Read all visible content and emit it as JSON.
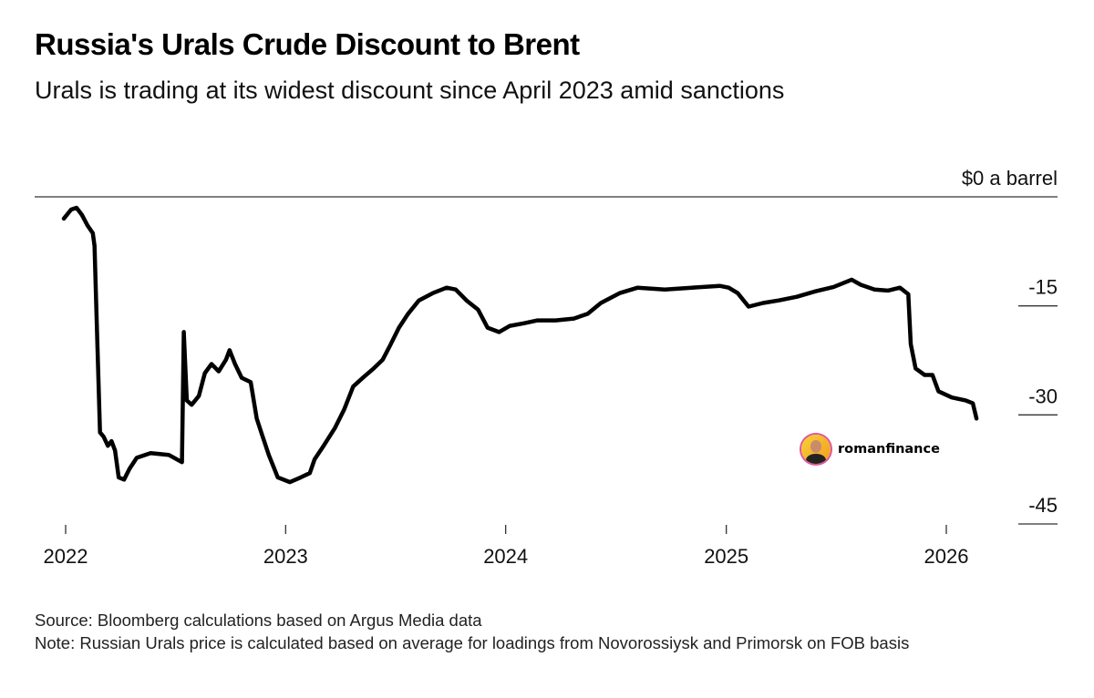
{
  "chart_data": {
    "type": "line",
    "title": "Russia's Urals Crude Discount to Brent",
    "subtitle": "Urals is trading at its widest discount since April 2023 amid sanctions",
    "ylabel": "$0 a barrel",
    "ylim": [
      -45,
      0
    ],
    "y_ticks": [
      "$0 a barrel",
      "-15",
      "-30",
      "-45"
    ],
    "y_tick_values": [
      0,
      -15,
      -30,
      -45
    ],
    "x_ticks": [
      "2022",
      "2023",
      "2024",
      "2025",
      "2026"
    ],
    "grid": false,
    "line_color": "#000000",
    "series": [
      {
        "x": [
          "2021-12-29",
          "2022-01-10",
          "2022-01-19",
          "2022-01-28",
          "2022-02-06",
          "2022-02-15",
          "2022-02-18",
          "2022-02-21",
          "2022-02-27",
          "2022-03-05",
          "2022-03-12",
          "2022-03-18",
          "2022-03-24",
          "2022-03-30",
          "2022-04-08",
          "2022-04-17",
          "2022-04-29",
          "2022-05-22",
          "2022-06-21",
          "2022-07-13",
          "2022-07-16",
          "2022-07-21",
          "2022-07-29",
          "2022-08-10",
          "2022-08-20",
          "2022-08-31",
          "2022-09-12",
          "2022-09-24",
          "2022-09-30",
          "2022-10-09",
          "2022-10-20",
          "2022-11-04",
          "2022-11-14",
          "2022-11-23",
          "2022-12-04",
          "2022-12-19",
          "2023-01-08",
          "2023-01-26",
          "2023-02-10",
          "2023-02-18",
          "2023-03-05",
          "2023-03-24",
          "2023-04-08",
          "2023-04-23",
          "2023-05-09",
          "2023-05-27",
          "2023-06-11",
          "2023-06-23",
          "2023-07-08",
          "2023-07-23",
          "2023-08-10",
          "2023-09-02",
          "2023-09-25",
          "2023-10-10",
          "2023-10-28",
          "2023-11-16",
          "2023-12-02",
          "2023-12-21",
          "2024-01-08",
          "2024-01-31",
          "2024-02-23",
          "2024-03-24",
          "2024-04-23",
          "2024-05-16",
          "2024-06-07",
          "2024-07-08",
          "2024-08-07",
          "2024-09-21",
          "2024-11-05",
          "2024-12-21",
          "2025-01-05",
          "2025-01-20",
          "2025-02-07",
          "2025-03-03",
          "2025-03-29",
          "2025-04-28",
          "2025-05-29",
          "2025-06-28",
          "2025-07-28",
          "2025-08-12",
          "2025-09-04",
          "2025-09-26",
          "2025-10-16",
          "2025-10-30",
          "2025-11-03",
          "2025-11-11",
          "2025-11-26",
          "2025-12-09",
          "2025-12-19",
          "2026-01-10",
          "2026-02-02",
          "2026-02-14",
          "2026-02-20"
        ],
        "y": [
          -3.0,
          -1.75,
          -1.5,
          -2.5,
          -3.9,
          -5.0,
          -6.75,
          -15.5,
          -32.4,
          -33.0,
          -34.25,
          -33.6,
          -34.9,
          -38.6,
          -38.9,
          -37.4,
          -35.9,
          -35.25,
          -35.5,
          -36.5,
          -18.6,
          -28.0,
          -28.6,
          -27.4,
          -24.25,
          -23.0,
          -24.0,
          -22.4,
          -21.1,
          -23.0,
          -24.9,
          -25.5,
          -30.5,
          -32.75,
          -35.5,
          -38.6,
          -39.25,
          -38.6,
          -38.0,
          -36.1,
          -34.25,
          -31.75,
          -29.25,
          -26.1,
          -24.9,
          -23.6,
          -22.4,
          -20.5,
          -18.0,
          -16.1,
          -14.25,
          -13.25,
          -12.5,
          -12.75,
          -14.25,
          -15.5,
          -18.0,
          -18.6,
          -17.75,
          -17.4,
          -17.0,
          -17.0,
          -16.75,
          -16.1,
          -14.6,
          -13.25,
          -12.5,
          -12.75,
          -12.5,
          -12.25,
          -12.5,
          -13.25,
          -15.1,
          -14.6,
          -14.25,
          -13.75,
          -13.0,
          -12.4,
          -11.4,
          -12.1,
          -12.75,
          -12.9,
          -12.5,
          -13.4,
          -20.25,
          -23.6,
          -24.5,
          -24.5,
          -26.75,
          -27.6,
          -28.0,
          -28.4,
          -30.5
        ]
      }
    ]
  },
  "footer": {
    "source": "Source: Bloomberg calculations based on Argus Media data",
    "note": "Note: Russian Urals price is calculated based on average for loadings from Novorossiysk and Primorsk on FOB basis"
  },
  "watermark": {
    "name": "romanfinance"
  }
}
